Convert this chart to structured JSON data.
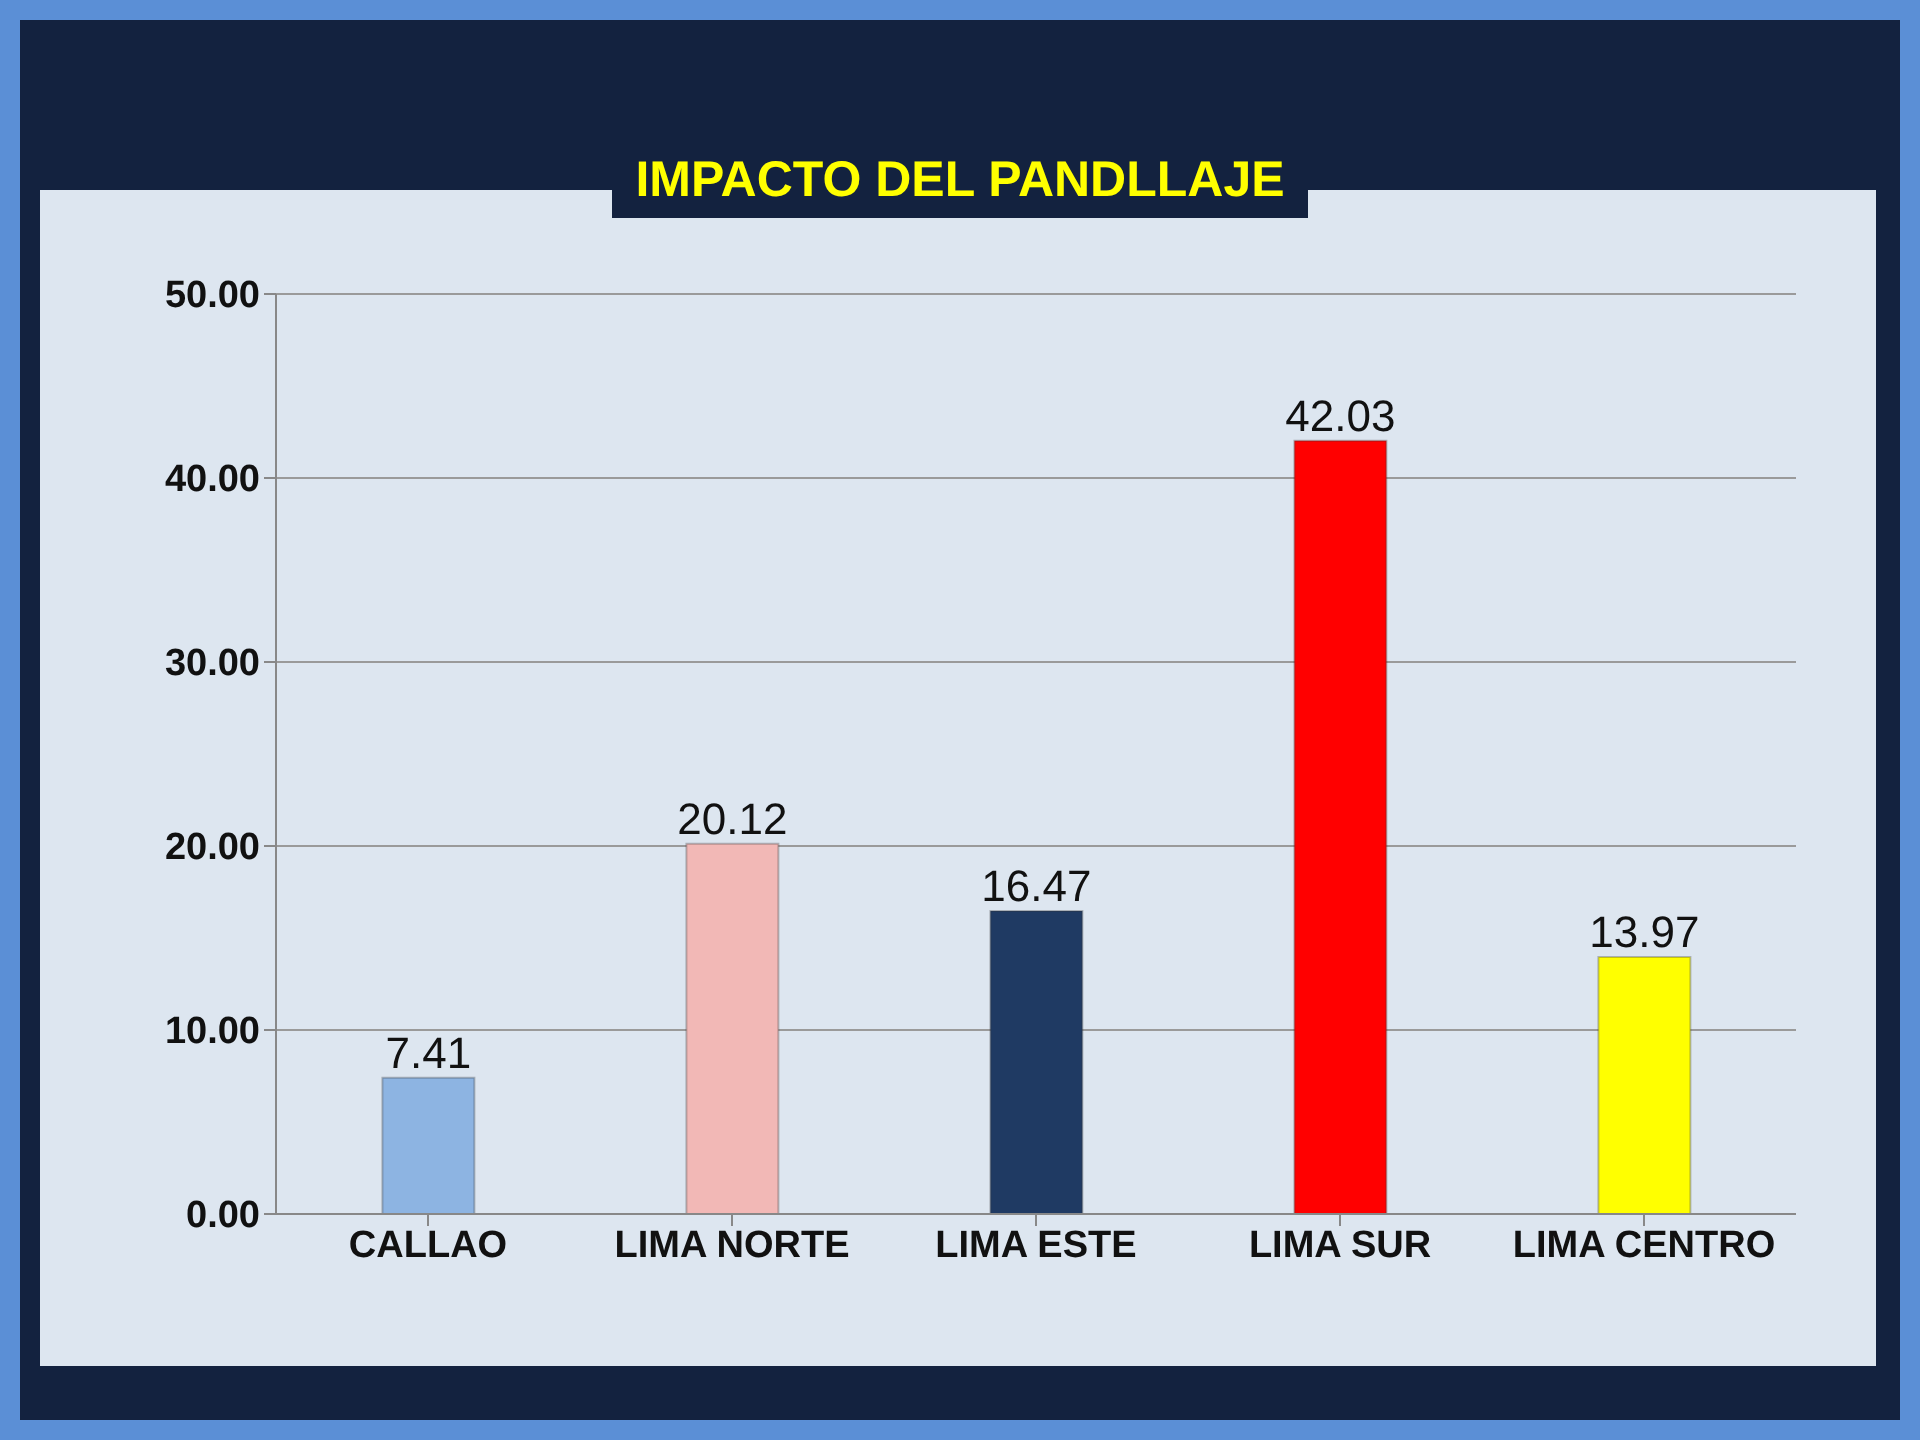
{
  "chart_data": {
    "type": "bar",
    "title": "IMPACTO DEL PANDLLAJE",
    "categories": [
      "CALLAO",
      "LIMA NORTE",
      "LIMA ESTE",
      "LIMA SUR",
      "LIMA CENTRO"
    ],
    "values": [
      7.41,
      20.12,
      16.47,
      42.03,
      13.97
    ],
    "colors": [
      "#8db4e2",
      "#f2b8b6",
      "#1f3a63",
      "#ff0000",
      "#ffff00"
    ],
    "ylim": [
      0,
      50
    ],
    "yticks": [
      {
        "value": 0,
        "label": "0.00"
      },
      {
        "value": 10,
        "label": "10.00"
      },
      {
        "value": 20,
        "label": "20.00"
      },
      {
        "value": 30,
        "label": "30.00"
      },
      {
        "value": 40,
        "label": "40.00"
      },
      {
        "value": 50,
        "label": "50.00"
      }
    ],
    "grid": "y",
    "data_labels": true
  }
}
